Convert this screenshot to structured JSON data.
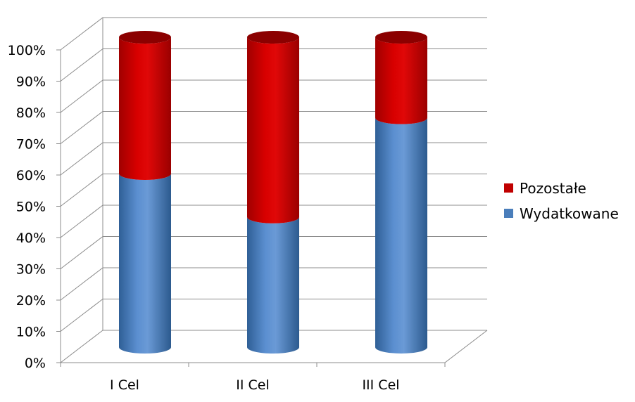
{
  "chart_data": {
    "type": "bar",
    "stacked": true,
    "percent_stacked": true,
    "style": "3d-cylinder",
    "categories": [
      "I Cel",
      "II Cel",
      "III Cel"
    ],
    "series": [
      {
        "name": "Wydatkowane",
        "values": [
          56,
          42,
          74
        ],
        "color": "#4a7ebb"
      },
      {
        "name": "Pozostałe",
        "values": [
          44,
          58,
          26
        ],
        "color": "#c00000"
      }
    ],
    "y_ticks": [
      "0%",
      "10%",
      "20%",
      "30%",
      "40%",
      "50%",
      "60%",
      "70%",
      "80%",
      "90%",
      "100%"
    ],
    "ylim": [
      0,
      100
    ],
    "grid": true,
    "legend_position": "right",
    "legend_order": [
      "Pozostałe",
      "Wydatkowane"
    ]
  }
}
